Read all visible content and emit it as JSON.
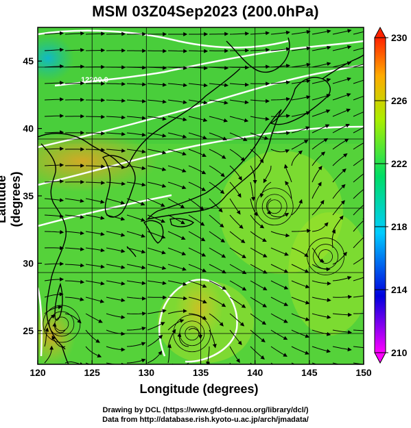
{
  "title": "MSM 03Z04Sep2023 (200.0hPa)",
  "x_axis": {
    "label": "Longitude (degrees)",
    "range": [
      120,
      150
    ],
    "ticks": [
      "120",
      "125",
      "130",
      "135",
      "140",
      "145",
      "150"
    ]
  },
  "y_axis": {
    "label": "Latitude  (degrees)",
    "range": [
      22.5,
      47.5
    ],
    "ticks": [
      "25",
      "30",
      "35",
      "40",
      "45"
    ]
  },
  "colorbar": {
    "min": 210,
    "max": 230,
    "ticks": [
      "210",
      "214",
      "218",
      "222",
      "226",
      "230"
    ],
    "colors": [
      "#ff00ff",
      "#0000dd",
      "#00ccff",
      "#00dd66",
      "#aaee00",
      "#ffaa00",
      "#ff2200"
    ]
  },
  "contour_label": "12200.0",
  "credits": {
    "line1": "Drawing by DCL (https://www.gfd-dennou.org/library/dcl/)",
    "line2": "Data from http://database.rish.kyoto-u.ac.jp/arch/jmadata/"
  },
  "map_features": {
    "vortices": [
      {
        "name": "typhoon-south",
        "lon": 134.2,
        "lat": 24.8
      },
      {
        "name": "cyclone-east",
        "lon": 141.8,
        "lat": 34.2
      },
      {
        "name": "vortex-west",
        "lon": 122.2,
        "lat": 25.5
      },
      {
        "name": "vortex-far-east",
        "lon": 146.5,
        "lat": 30.5
      }
    ]
  }
}
